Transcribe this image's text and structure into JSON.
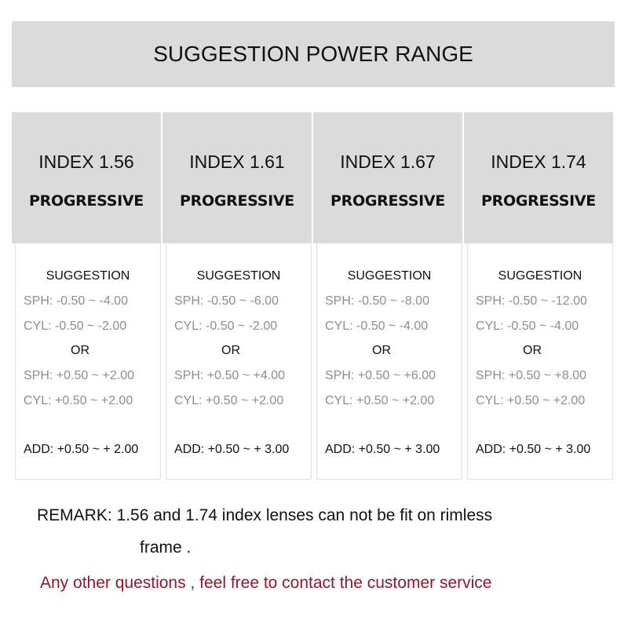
{
  "title": "SUGGESTION POWER RANGE",
  "columns": [
    {
      "index": "INDEX 1.56",
      "type": "PROGRESSIVE",
      "suggestion": "SUGGESTION",
      "sph1": "SPH: -0.50 ~ -4.00",
      "cyl1": "CYL: -0.50 ~ -2.00",
      "or": "OR",
      "sph2": "SPH: +0.50 ~ +2.00",
      "cyl2": "CYL: +0.50 ~ +2.00",
      "add": "ADD: +0.50 ~ + 2.00"
    },
    {
      "index": "INDEX 1.61",
      "type": "PROGRESSIVE",
      "suggestion": "SUGGESTION",
      "sph1": "SPH: -0.50 ~ -6.00",
      "cyl1": "CYL: -0.50 ~ -2.00",
      "or": "OR",
      "sph2": "SPH: +0.50 ~ +4.00",
      "cyl2": "CYL: +0.50 ~ +2.00",
      "add": "ADD: +0.50 ~ + 3.00"
    },
    {
      "index": "INDEX 1.67",
      "type": "PROGRESSIVE",
      "suggestion": "SUGGESTION",
      "sph1": "SPH: -0.50 ~ -8.00",
      "cyl1": "CYL: -0.50 ~ -4.00",
      "or": "OR",
      "sph2": "SPH: +0.50 ~ +6.00",
      "cyl2": "CYL: +0.50 ~ +2.00",
      "add": "ADD: +0.50 ~ + 3.00"
    },
    {
      "index": "INDEX 1.74",
      "type": "PROGRESSIVE",
      "suggestion": "SUGGESTION",
      "sph1": "SPH: -0.50 ~ -12.00",
      "cyl1": "CYL: -0.50 ~ -4.00",
      "or": "OR",
      "sph2": "SPH: +0.50 ~ +8.00",
      "cyl2": "CYL: +0.50 ~ +2.00",
      "add": "ADD: +0.50 ~ + 3.00"
    }
  ],
  "remark_line1": "REMARK: 1.56 and 1.74 index lenses can not be fit on rimless",
  "remark_line2": "frame .",
  "contact": "Any other questions , feel free to contact the customer service",
  "colors": {
    "header_bg": "#dcdbdc",
    "range_text": "#8e8e8e",
    "contact_text": "#8b1a2b"
  }
}
